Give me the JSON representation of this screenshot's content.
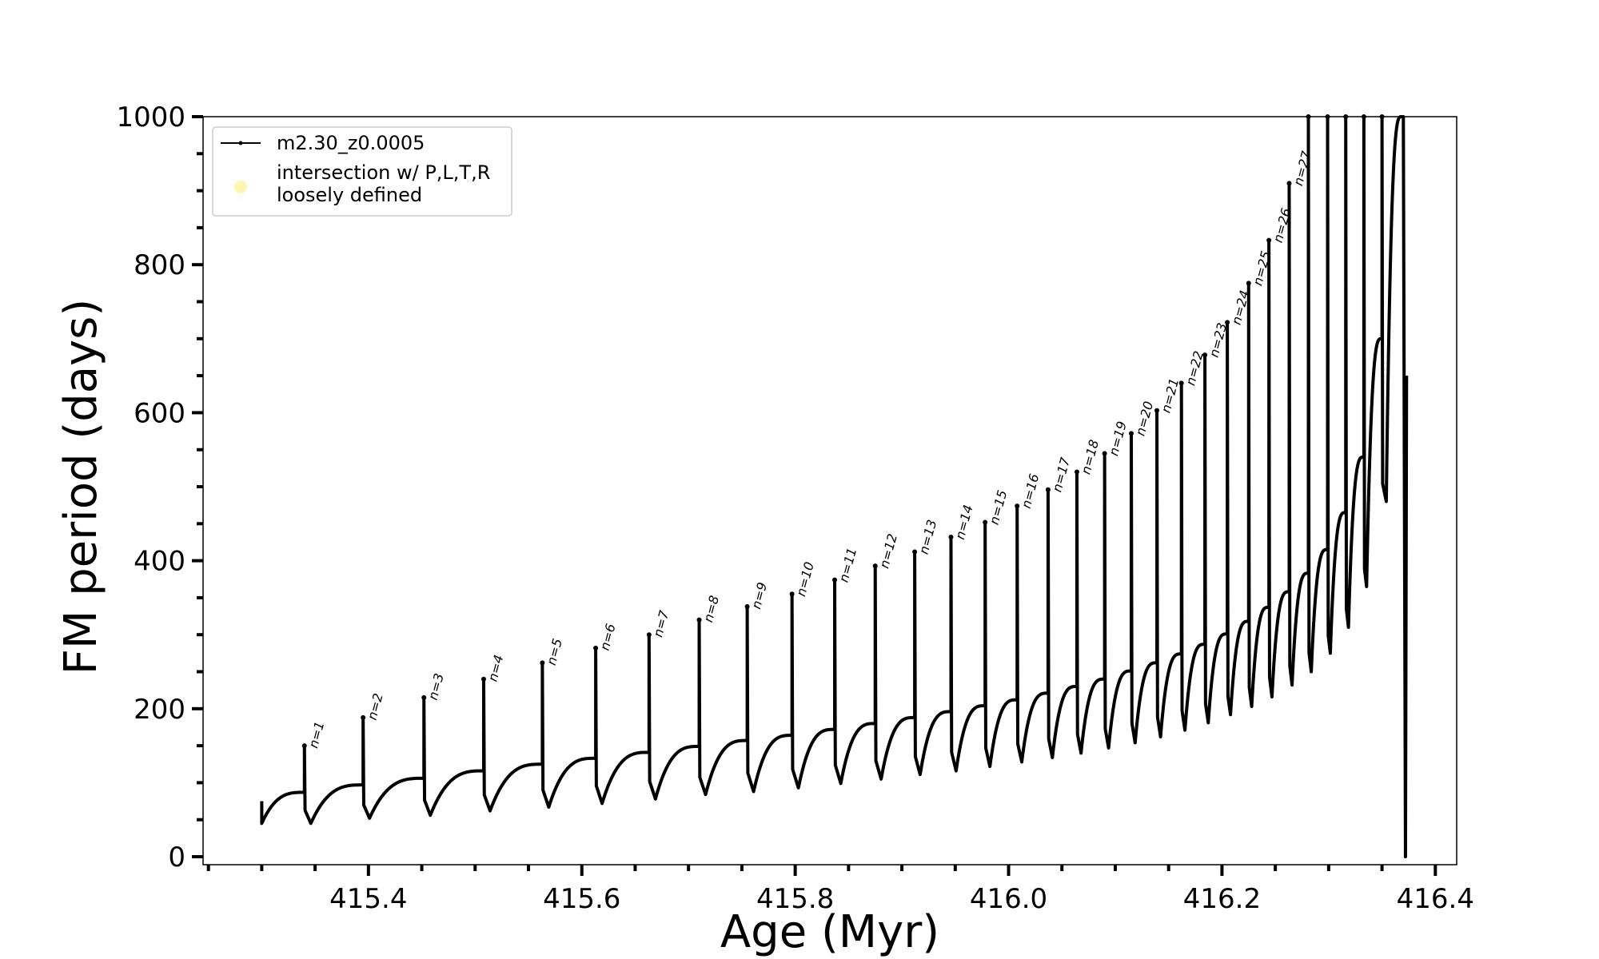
{
  "chart_data": {
    "type": "line",
    "title": "",
    "xlabel": "Age (Myr)",
    "ylabel": "FM period (days)",
    "xlim": [
      415.245,
      416.42
    ],
    "ylim": [
      0,
      1000
    ],
    "x_ticks": [
      415.4,
      415.6,
      415.8,
      416.0,
      416.2,
      416.4
    ],
    "x_tick_labels": [
      "415.4",
      "415.6",
      "415.8",
      "416.0",
      "416.2",
      "416.4"
    ],
    "y_ticks": [
      0,
      200,
      400,
      600,
      800,
      1000
    ],
    "y_tick_labels": [
      "0",
      "200",
      "400",
      "600",
      "800",
      "1000"
    ],
    "legend": {
      "position": "upper-left",
      "entries": [
        {
          "label": "m2.30_z0.0005",
          "marker": "line-dot",
          "color": "#000000"
        },
        {
          "label": "intersection w/ P,L,T,R\nloosely defined",
          "marker": "circle",
          "color": "#fff7b0"
        }
      ]
    },
    "series": [
      {
        "name": "m2.30_z0.0005",
        "color": "#000000",
        "start": {
          "x": 415.3,
          "y": 45
        },
        "pulses": [
          {
            "n": "n=1",
            "x": 415.34,
            "peak": 150,
            "base": 87,
            "dip": 45
          },
          {
            "n": "n=2",
            "x": 415.395,
            "peak": 188,
            "base": 97,
            "dip": 52
          },
          {
            "n": "n=3",
            "x": 415.452,
            "peak": 215,
            "base": 106,
            "dip": 56
          },
          {
            "n": "n=4",
            "x": 415.508,
            "peak": 240,
            "base": 116,
            "dip": 62
          },
          {
            "n": "n=5",
            "x": 415.563,
            "peak": 262,
            "base": 125,
            "dip": 67
          },
          {
            "n": "n=6",
            "x": 415.613,
            "peak": 282,
            "base": 133,
            "dip": 72
          },
          {
            "n": "n=7",
            "x": 415.663,
            "peak": 300,
            "base": 141,
            "dip": 78
          },
          {
            "n": "n=8",
            "x": 415.71,
            "peak": 320,
            "base": 149,
            "dip": 84
          },
          {
            "n": "n=9",
            "x": 415.755,
            "peak": 338,
            "base": 157,
            "dip": 88
          },
          {
            "n": "n=10",
            "x": 415.797,
            "peak": 355,
            "base": 164,
            "dip": 93
          },
          {
            "n": "n=11",
            "x": 415.837,
            "peak": 374,
            "base": 172,
            "dip": 99
          },
          {
            "n": "n=12",
            "x": 415.875,
            "peak": 393,
            "base": 180,
            "dip": 105
          },
          {
            "n": "n=13",
            "x": 415.912,
            "peak": 412,
            "base": 188,
            "dip": 111
          },
          {
            "n": "n=14",
            "x": 415.946,
            "peak": 432,
            "base": 196,
            "dip": 116
          },
          {
            "n": "n=15",
            "x": 415.978,
            "peak": 452,
            "base": 204,
            "dip": 122
          },
          {
            "n": "n=16",
            "x": 416.008,
            "peak": 474,
            "base": 212,
            "dip": 128
          },
          {
            "n": "n=17",
            "x": 416.037,
            "peak": 496,
            "base": 221,
            "dip": 134
          },
          {
            "n": "n=18",
            "x": 416.064,
            "peak": 520,
            "base": 230,
            "dip": 140
          },
          {
            "n": "n=19",
            "x": 416.09,
            "peak": 545,
            "base": 240,
            "dip": 147
          },
          {
            "n": "n=20",
            "x": 416.115,
            "peak": 572,
            "base": 251,
            "dip": 154
          },
          {
            "n": "n=21",
            "x": 416.139,
            "peak": 603,
            "base": 262,
            "dip": 162
          },
          {
            "n": "n=22",
            "x": 416.162,
            "peak": 640,
            "base": 274,
            "dip": 171
          },
          {
            "n": "n=23",
            "x": 416.184,
            "peak": 678,
            "base": 287,
            "dip": 181
          },
          {
            "n": "n=24",
            "x": 416.205,
            "peak": 722,
            "base": 301,
            "dip": 192
          },
          {
            "n": "n=25",
            "x": 416.225,
            "peak": 775,
            "base": 318,
            "dip": 203
          },
          {
            "n": "n=26",
            "x": 416.244,
            "peak": 833,
            "base": 337,
            "dip": 216
          },
          {
            "n": "n=27",
            "x": 416.263,
            "peak": 910,
            "base": 358,
            "dip": 232
          },
          {
            "n": "",
            "x": 416.281,
            "peak": 1000,
            "base": 383,
            "dip": 250
          },
          {
            "n": "",
            "x": 416.299,
            "peak": 1000,
            "base": 415,
            "dip": 275
          },
          {
            "n": "",
            "x": 416.316,
            "peak": 1000,
            "base": 465,
            "dip": 310
          },
          {
            "n": "",
            "x": 416.333,
            "peak": 1000,
            "base": 540,
            "dip": 365
          },
          {
            "n": "",
            "x": 416.35,
            "peak": 1000,
            "base": 700,
            "dip": 480
          }
        ],
        "end": {
          "x": 416.37,
          "peak": 1000,
          "min": 0
        }
      }
    ]
  }
}
